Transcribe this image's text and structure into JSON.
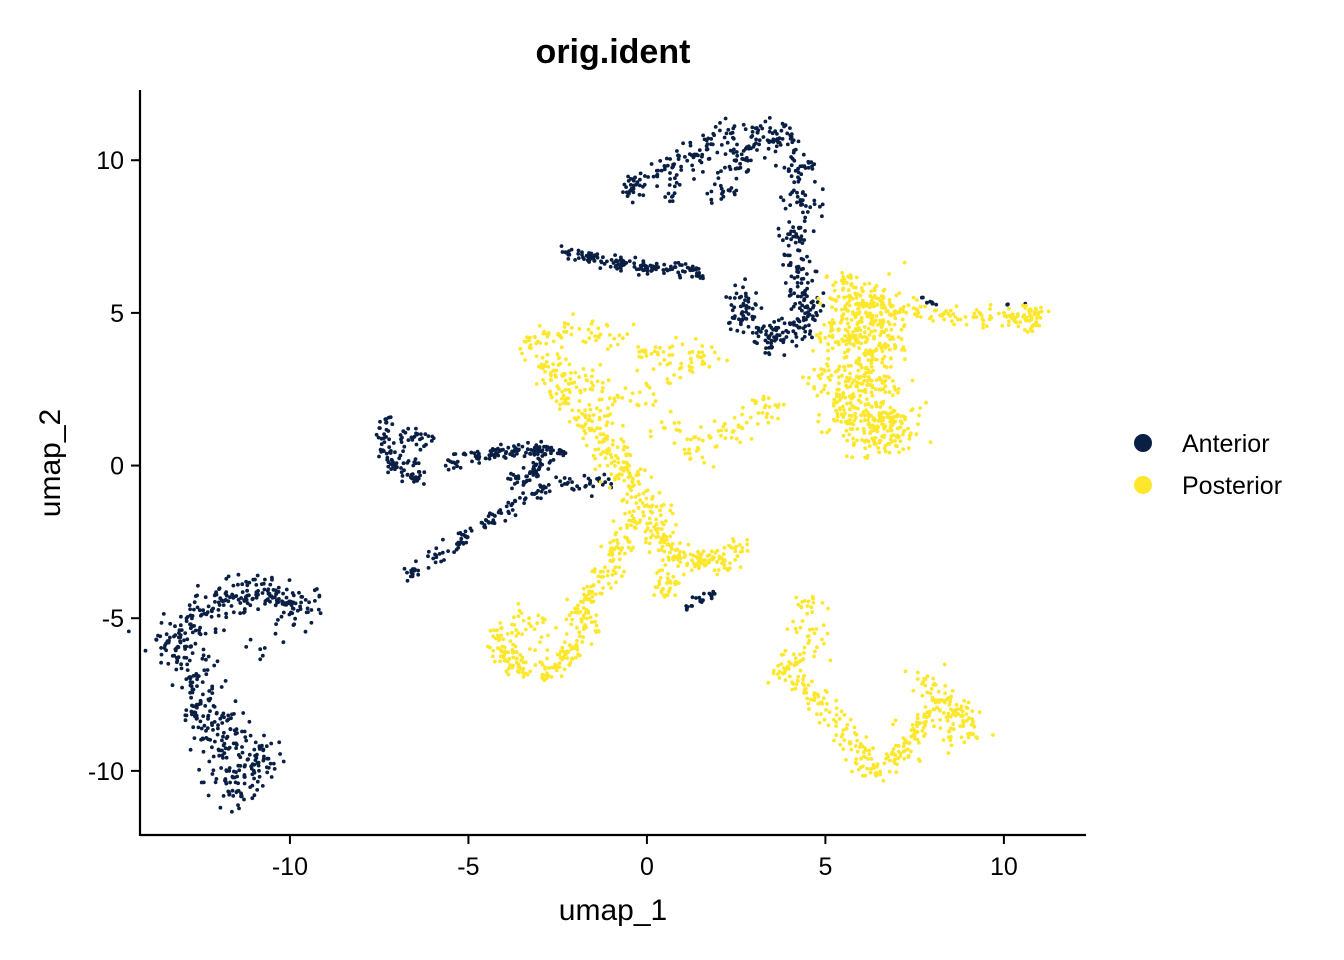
{
  "chart_data": {
    "type": "scatter",
    "title": "orig.ident",
    "xlabel": "umap_1",
    "ylabel": "umap_2",
    "xlim": [
      -14.2,
      12.3
    ],
    "ylim": [
      -12.1,
      12.3
    ],
    "xticks": [
      -10,
      -5,
      0,
      5,
      10
    ],
    "yticks": [
      -10,
      -5,
      0,
      5,
      10
    ],
    "xtick_labels": [
      "-10",
      "-5",
      "0",
      "5",
      "10"
    ],
    "ytick_labels": [
      "-10",
      "-5",
      "0",
      "5",
      "10"
    ],
    "grid": false,
    "legend_position": "right",
    "series": [
      {
        "name": "Anterior",
        "color": "#0a1f44",
        "clusters": [
          {
            "points": [
              [
                -13.4,
                -5.8
              ],
              [
                -12.9,
                -6.3
              ],
              [
                -12.8,
                -5.2
              ],
              [
                -12.3,
                -4.8
              ],
              [
                -11.8,
                -4.4
              ],
              [
                -11.2,
                -4.1
              ],
              [
                -10.6,
                -4.2
              ],
              [
                -10.1,
                -4.5
              ],
              [
                -9.7,
                -4.7
              ],
              [
                -12.6,
                -7.0
              ],
              [
                -12.5,
                -7.8
              ],
              [
                -12.3,
                -8.6
              ],
              [
                -12.0,
                -9.3
              ],
              [
                -11.7,
                -10.0
              ],
              [
                -11.5,
                -10.7
              ],
              [
                -11.0,
                -9.8
              ],
              [
                -10.6,
                -9.6
              ],
              [
                -11.9,
                -8.2
              ]
            ],
            "n": 520,
            "spread": 0.32
          },
          {
            "points": [
              [
                2.1,
                8.9
              ],
              [
                2.5,
                10.0
              ],
              [
                3.1,
                10.9
              ],
              [
                3.8,
                10.7
              ],
              [
                4.3,
                9.8
              ],
              [
                4.3,
                8.7
              ],
              [
                4.1,
                7.5
              ],
              [
                4.2,
                6.5
              ],
              [
                4.4,
                5.6
              ],
              [
                4.5,
                5.0
              ],
              [
                4.1,
                4.4
              ],
              [
                3.4,
                4.2
              ],
              [
                2.7,
                4.9
              ],
              [
                2.6,
                5.5
              ]
            ],
            "n": 420,
            "spread": 0.24
          },
          {
            "points": [
              [
                -0.3,
                9.2
              ],
              [
                0.5,
                9.7
              ],
              [
                1.2,
                10.2
              ],
              [
                1.8,
                10.7
              ],
              [
                2.4,
                10.9
              ],
              [
                0.7,
                8.8
              ]
            ],
            "n": 120,
            "spread": 0.22
          },
          {
            "points": [
              [
                -2.2,
                6.9
              ],
              [
                -1.5,
                6.8
              ],
              [
                -0.8,
                6.6
              ],
              [
                0.0,
                6.5
              ],
              [
                0.8,
                6.5
              ],
              [
                1.4,
                6.3
              ]
            ],
            "n": 140,
            "spread": 0.12
          },
          {
            "points": [
              [
                -7.3,
                1.4
              ],
              [
                -7.4,
                0.5
              ],
              [
                -7.1,
                0.0
              ],
              [
                -6.7,
                -0.3
              ],
              [
                -6.4,
                -0.4
              ],
              [
                -6.9,
                1.0
              ],
              [
                -6.3,
                0.9
              ]
            ],
            "n": 110,
            "spread": 0.14
          },
          {
            "points": [
              [
                -5.4,
                0.1
              ],
              [
                -4.8,
                0.3
              ],
              [
                -4.2,
                0.4
              ],
              [
                -3.6,
                0.5
              ],
              [
                -3.0,
                0.5
              ],
              [
                -2.5,
                0.4
              ],
              [
                -3.2,
                -0.2
              ],
              [
                -3.7,
                -0.6
              ]
            ],
            "n": 160,
            "spread": 0.14
          },
          {
            "points": [
              [
                -6.6,
                -3.5
              ],
              [
                -5.9,
                -3.0
              ],
              [
                -5.2,
                -2.4
              ],
              [
                -4.5,
                -1.8
              ],
              [
                -3.8,
                -1.3
              ],
              [
                -3.1,
                -0.9
              ],
              [
                -2.3,
                -0.6
              ],
              [
                -1.6,
                -0.6
              ],
              [
                -1.0,
                -0.6
              ]
            ],
            "n": 130,
            "spread": 0.13
          },
          {
            "points": [
              [
                1.1,
                -4.6
              ],
              [
                1.5,
                -4.4
              ],
              [
                1.9,
                -4.2
              ]
            ],
            "n": 18,
            "spread": 0.08
          },
          {
            "points": [
              [
                7.7,
                5.5
              ],
              [
                8.0,
                5.3
              ],
              [
                10.6,
                5.3
              ]
            ],
            "n": 8,
            "spread": 0.06
          }
        ]
      },
      {
        "name": "Posterior",
        "color": "#fde72d",
        "clusters": [
          {
            "points": [
              [
                5.5,
                5.8
              ],
              [
                6.3,
                5.4
              ],
              [
                7.0,
                5.0
              ],
              [
                5.2,
                4.2
              ],
              [
                6.0,
                4.0
              ],
              [
                6.8,
                3.8
              ],
              [
                4.9,
                3.0
              ],
              [
                5.8,
                2.8
              ],
              [
                6.6,
                2.7
              ],
              [
                5.3,
                1.8
              ],
              [
                6.2,
                1.7
              ],
              [
                7.0,
                1.6
              ],
              [
                6.1,
                0.8
              ],
              [
                7.1,
                0.8
              ],
              [
                5.6,
                5.1
              ],
              [
                6.6,
                4.6
              ]
            ],
            "n": 700,
            "spread": 0.33
          },
          {
            "points": [
              [
                -3.1,
                4.0
              ],
              [
                -2.6,
                3.1
              ],
              [
                -2.2,
                2.2
              ],
              [
                -1.6,
                1.5
              ],
              [
                -1.2,
                0.8
              ],
              [
                -0.8,
                0.1
              ],
              [
                -0.4,
                -0.5
              ],
              [
                0.0,
                -1.3
              ],
              [
                0.3,
                -2.2
              ],
              [
                0.6,
                -3.0
              ],
              [
                -1.9,
                2.9
              ],
              [
                -0.9,
                2.1
              ],
              [
                -2.8,
                4.3
              ],
              [
                -1.3,
                4.3
              ],
              [
                0.3,
                3.7
              ],
              [
                1.6,
                3.6
              ],
              [
                -0.2,
                2.4
              ],
              [
                1.2,
                0.4
              ],
              [
                2.4,
                1.1
              ],
              [
                3.3,
                1.9
              ],
              [
                -1.1,
                0.0
              ]
            ],
            "n": 520,
            "spread": 0.26
          },
          {
            "points": [
              [
                -4.2,
                -5.4
              ],
              [
                -3.6,
                -6.6
              ],
              [
                -2.8,
                -6.8
              ],
              [
                -2.2,
                -6.1
              ],
              [
                -1.7,
                -5.3
              ],
              [
                -1.6,
                -4.4
              ],
              [
                -1.1,
                -3.6
              ],
              [
                -0.8,
                -2.7
              ],
              [
                -0.5,
                -1.8
              ],
              [
                -2.0,
                -4.8
              ],
              [
                -4.0,
                -6.2
              ],
              [
                -3.3,
                -5.0
              ]
            ],
            "n": 300,
            "spread": 0.2
          },
          {
            "points": [
              [
                0.4,
                -2.4
              ],
              [
                0.9,
                -3.0
              ],
              [
                1.5,
                -3.0
              ],
              [
                2.1,
                -3.2
              ],
              [
                2.6,
                -2.6
              ],
              [
                0.6,
                -3.8
              ],
              [
                0.5,
                -4.3
              ]
            ],
            "n": 140,
            "spread": 0.17
          },
          {
            "points": [
              [
                7.6,
                5.0
              ],
              [
                8.5,
                4.9
              ],
              [
                9.4,
                4.8
              ],
              [
                10.2,
                4.9
              ],
              [
                10.6,
                4.8
              ],
              [
                10.9,
                5.1
              ],
              [
                10.8,
                4.4
              ]
            ],
            "n": 110,
            "spread": 0.17
          },
          {
            "points": [
              [
                4.5,
                -4.6
              ],
              [
                4.5,
                -5.6
              ],
              [
                4.3,
                -6.4
              ],
              [
                3.8,
                -6.8
              ],
              [
                4.4,
                -7.2
              ],
              [
                4.8,
                -7.8
              ],
              [
                5.3,
                -8.4
              ],
              [
                5.7,
                -9.1
              ],
              [
                6.0,
                -9.6
              ],
              [
                6.4,
                -10.1
              ],
              [
                6.7,
                -9.6
              ],
              [
                7.2,
                -9.2
              ],
              [
                7.5,
                -8.7
              ],
              [
                7.9,
                -8.2
              ],
              [
                8.3,
                -7.7
              ],
              [
                8.8,
                -8.2
              ],
              [
                9.1,
                -8.8
              ],
              [
                7.8,
                -7.0
              ],
              [
                8.5,
                -9.0
              ]
            ],
            "n": 360,
            "spread": 0.23
          }
        ]
      }
    ]
  }
}
